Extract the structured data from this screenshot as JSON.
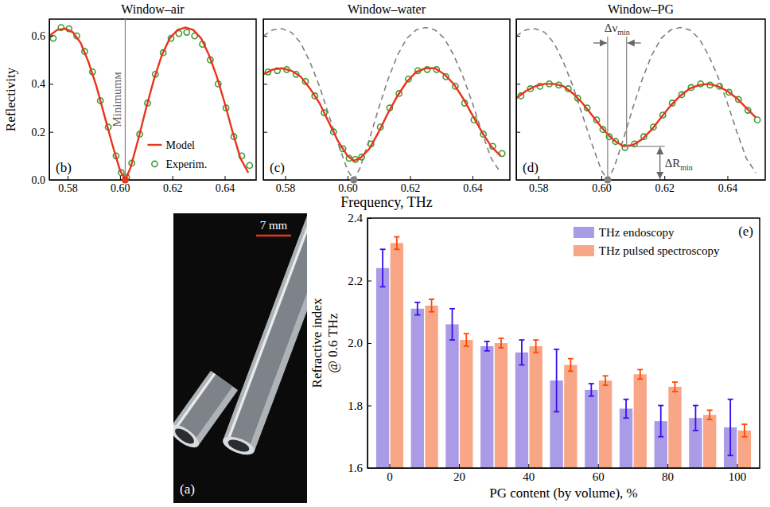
{
  "chart_data": [
    {
      "type": "line",
      "title": "Window–air",
      "panel_label": "(b)",
      "y_label": "Reflectivity",
      "xlim": [
        0.573,
        0.652
      ],
      "xticks": [
        0.58,
        {
          "value": 0.6,
          "label": "0.60"
        },
        0.62,
        0.64
      ],
      "ylim": [
        0,
        0.67
      ],
      "yticks": [
        {
          "value": 0,
          "label": "0.0"
        },
        0.2,
        0.4,
        0.6
      ],
      "legend": "lower right",
      "series": [
        {
          "name": "Model",
          "type": "line",
          "color": "#e8341c",
          "line_style": "solid",
          "x": [
            0.573,
            0.576,
            0.579,
            0.582,
            0.585,
            0.588,
            0.591,
            0.594,
            0.597,
            0.6,
            0.602,
            0.604,
            0.607,
            0.61,
            0.613,
            0.616,
            0.619,
            0.622,
            0.625,
            0.628,
            0.631,
            0.634,
            0.637,
            0.64,
            0.643,
            0.646,
            0.649
          ],
          "values": [
            0.6,
            0.625,
            0.63,
            0.615,
            0.57,
            0.49,
            0.39,
            0.27,
            0.15,
            0.04,
            0,
            0.05,
            0.17,
            0.3,
            0.42,
            0.52,
            0.59,
            0.625,
            0.635,
            0.625,
            0.59,
            0.52,
            0.43,
            0.32,
            0.2,
            0.09,
            0.03
          ]
        },
        {
          "name": "Experim.",
          "type": "scatter",
          "color": "#3c9a34",
          "marker": "open-circle",
          "x": [
            0.5745,
            0.5775,
            0.5805,
            0.5835,
            0.5865,
            0.5895,
            0.5925,
            0.5955,
            0.5985,
            0.6005,
            0.6025,
            0.6045,
            0.6075,
            0.6105,
            0.6135,
            0.6165,
            0.6195,
            0.6225,
            0.6255,
            0.6285,
            0.6315,
            0.6345,
            0.6375,
            0.6405,
            0.6435,
            0.6465,
            0.6495
          ],
          "values": [
            0.59,
            0.635,
            0.63,
            0.6,
            0.535,
            0.45,
            0.33,
            0.22,
            0.1,
            0.03,
            0.01,
            0.07,
            0.19,
            0.32,
            0.44,
            0.53,
            0.59,
            0.61,
            0.615,
            0.6,
            0.565,
            0.5,
            0.4,
            0.3,
            0.18,
            0.1,
            0.06
          ]
        }
      ],
      "minimum": {
        "x": 0.602,
        "y": 0,
        "text": "Minimumм"
      }
    },
    {
      "type": "line",
      "title": "Window–water",
      "panel_label": "(c)",
      "x_label": "Frequency, THz",
      "tick_labels": "x",
      "xlim": [
        0.573,
        0.652
      ],
      "xticks": [
        0.58,
        {
          "value": 0.6,
          "label": "0.60"
        },
        0.62,
        0.64
      ],
      "ylim": [
        0,
        0.67
      ],
      "yticks": [
        0,
        0.2,
        0.4,
        0.6
      ],
      "series": [
        {
          "type": "line",
          "color": "#808080",
          "line_style": "dashed",
          "x": [
            0.573,
            0.576,
            0.579,
            0.582,
            0.585,
            0.588,
            0.591,
            0.594,
            0.597,
            0.6,
            0.602,
            0.604,
            0.607,
            0.61,
            0.613,
            0.616,
            0.619,
            0.622,
            0.625,
            0.628,
            0.631,
            0.634,
            0.637,
            0.64,
            0.643,
            0.646,
            0.649
          ],
          "values": [
            0.6,
            0.625,
            0.63,
            0.615,
            0.57,
            0.49,
            0.39,
            0.27,
            0.15,
            0.04,
            0,
            0.05,
            0.17,
            0.3,
            0.42,
            0.52,
            0.59,
            0.625,
            0.635,
            0.625,
            0.59,
            0.52,
            0.43,
            0.32,
            0.2,
            0.09,
            0.03
          ]
        },
        {
          "type": "line",
          "color": "#e8341c",
          "line_style": "solid",
          "x": [
            0.573,
            0.576,
            0.579,
            0.582,
            0.585,
            0.588,
            0.591,
            0.594,
            0.597,
            0.6,
            0.602,
            0.604,
            0.607,
            0.61,
            0.613,
            0.616,
            0.619,
            0.622,
            0.625,
            0.628,
            0.631,
            0.634,
            0.637,
            0.64,
            0.643,
            0.646,
            0.649
          ],
          "values": [
            0.44,
            0.46,
            0.465,
            0.455,
            0.43,
            0.38,
            0.32,
            0.24,
            0.16,
            0.1,
            0.08,
            0.09,
            0.13,
            0.2,
            0.28,
            0.35,
            0.41,
            0.45,
            0.465,
            0.465,
            0.44,
            0.4,
            0.34,
            0.27,
            0.2,
            0.14,
            0.1
          ]
        },
        {
          "type": "scatter",
          "color": "#3c9a34",
          "marker": "open-circle",
          "x": [
            0.5745,
            0.5775,
            0.5805,
            0.5835,
            0.5865,
            0.5895,
            0.5925,
            0.5955,
            0.5985,
            0.6005,
            0.6025,
            0.6045,
            0.6075,
            0.6105,
            0.6135,
            0.6165,
            0.6195,
            0.6225,
            0.6255,
            0.6285,
            0.6315,
            0.6345,
            0.6375,
            0.6405,
            0.6435,
            0.6465,
            0.6495
          ],
          "values": [
            0.45,
            0.455,
            0.46,
            0.44,
            0.41,
            0.35,
            0.28,
            0.2,
            0.13,
            0.09,
            0.085,
            0.095,
            0.15,
            0.22,
            0.3,
            0.36,
            0.42,
            0.455,
            0.46,
            0.46,
            0.43,
            0.39,
            0.32,
            0.25,
            0.19,
            0.14,
            0.11
          ]
        }
      ],
      "minimum": {
        "x": 0.602,
        "y": 0
      }
    },
    {
      "type": "line",
      "title": "Window–PG",
      "panel_label": "(d)",
      "tick_labels": "x",
      "xlim": [
        0.573,
        0.652
      ],
      "xticks": [
        0.58,
        {
          "value": 0.6,
          "label": "0.60"
        },
        0.62,
        0.64
      ],
      "ylim": [
        0,
        0.67
      ],
      "yticks": [
        0,
        0.2,
        0.4,
        0.6
      ],
      "series": [
        {
          "type": "line",
          "color": "#808080",
          "line_style": "dashed",
          "x": [
            0.573,
            0.576,
            0.579,
            0.582,
            0.585,
            0.588,
            0.591,
            0.594,
            0.597,
            0.6,
            0.602,
            0.604,
            0.607,
            0.61,
            0.613,
            0.616,
            0.619,
            0.622,
            0.625,
            0.628,
            0.631,
            0.634,
            0.637,
            0.64,
            0.643,
            0.646,
            0.649
          ],
          "values": [
            0.6,
            0.625,
            0.63,
            0.615,
            0.57,
            0.49,
            0.39,
            0.27,
            0.15,
            0.04,
            0,
            0.05,
            0.17,
            0.3,
            0.42,
            0.52,
            0.59,
            0.625,
            0.635,
            0.625,
            0.59,
            0.52,
            0.43,
            0.32,
            0.2,
            0.09,
            0.03
          ]
        },
        {
          "type": "line",
          "color": "#e8341c",
          "line_style": "solid",
          "x": [
            0.573,
            0.576,
            0.579,
            0.582,
            0.585,
            0.588,
            0.591,
            0.594,
            0.597,
            0.6,
            0.602,
            0.604,
            0.607,
            0.61,
            0.613,
            0.616,
            0.619,
            0.622,
            0.625,
            0.628,
            0.631,
            0.634,
            0.637,
            0.64,
            0.643,
            0.646,
            0.649
          ],
          "values": [
            0.34,
            0.37,
            0.39,
            0.4,
            0.4,
            0.39,
            0.36,
            0.32,
            0.27,
            0.22,
            0.19,
            0.165,
            0.14,
            0.145,
            0.17,
            0.21,
            0.26,
            0.31,
            0.35,
            0.38,
            0.395,
            0.4,
            0.39,
            0.37,
            0.34,
            0.3,
            0.26
          ]
        },
        {
          "type": "scatter",
          "color": "#3c9a34",
          "marker": "open-circle",
          "x": [
            0.5745,
            0.5775,
            0.5805,
            0.5835,
            0.5865,
            0.5895,
            0.5925,
            0.5955,
            0.5985,
            0.6005,
            0.6025,
            0.6045,
            0.6075,
            0.6105,
            0.6135,
            0.6165,
            0.6195,
            0.6225,
            0.6255,
            0.6285,
            0.6315,
            0.6345,
            0.6375,
            0.6405,
            0.6435,
            0.6465,
            0.6495
          ],
          "values": [
            0.35,
            0.38,
            0.39,
            0.4,
            0.395,
            0.38,
            0.34,
            0.3,
            0.25,
            0.21,
            0.18,
            0.16,
            0.135,
            0.15,
            0.18,
            0.22,
            0.27,
            0.32,
            0.355,
            0.385,
            0.4,
            0.395,
            0.39,
            0.365,
            0.335,
            0.29,
            0.25
          ]
        }
      ],
      "minimum": {
        "x": 0.602,
        "y": 0
      },
      "delta_nu": {
        "text": "Δν",
        "subscript": "min",
        "from": 0.602,
        "to": 0.608
      },
      "delta_R": {
        "text": "ΔR",
        "subscript": "min",
        "from": 0,
        "to": 0.14
      }
    },
    {
      "type": "bar",
      "panel_label": "(e)",
      "y_label": "Refractive index @ 0.6 THz",
      "x_label": "PG content (by volume), %",
      "categories": [
        "0",
        null,
        "20",
        null,
        "40",
        null,
        "60",
        null,
        "80",
        null,
        "100"
      ],
      "ylim": [
        1.6,
        2.4
      ],
      "yticks": [
        1.6,
        1.8,
        {
          "value": 2,
          "label": "2.0"
        },
        2.2,
        2.4
      ],
      "legend": "upper right",
      "series": [
        {
          "name": "THz endoscopy",
          "color": "#a99be6",
          "values": [
            2.24,
            2.11,
            2.06,
            1.99,
            1.97,
            1.88,
            1.85,
            1.79,
            1.75,
            1.76,
            1.73
          ],
          "errors": [
            0.06,
            0.02,
            0.05,
            0.015,
            0.04,
            0.1,
            0.02,
            0.03,
            0.05,
            0.04,
            0.09
          ]
        },
        {
          "name": "THz pulsed spectroscopy",
          "color": "#f8a686",
          "values": [
            2.32,
            2.12,
            2.01,
            2.0,
            1.99,
            1.93,
            1.88,
            1.9,
            1.86,
            1.77,
            1.72
          ],
          "errors": [
            0.02,
            0.02,
            0.02,
            0.015,
            0.02,
            0.02,
            0.015,
            0.015,
            0.015,
            0.015,
            0.02
          ]
        }
      ]
    }
  ],
  "photo": {
    "panel_label": "(a)",
    "scale_bar_label": "7 mm"
  }
}
